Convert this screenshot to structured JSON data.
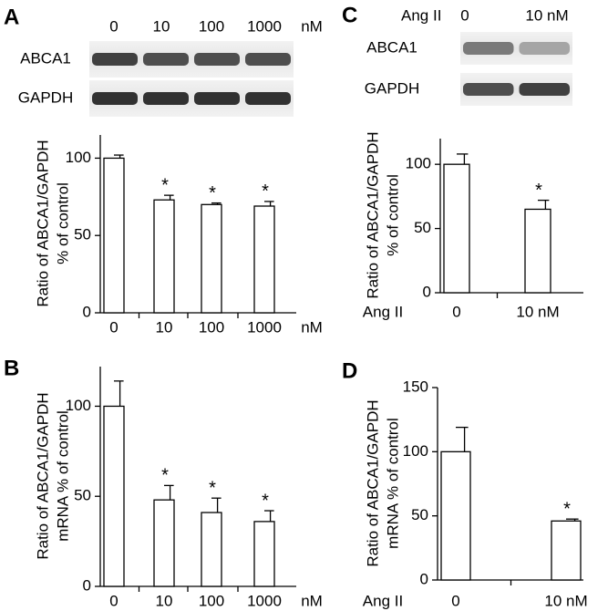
{
  "chart_data": [
    {
      "type": "bar",
      "panel": "A",
      "blot_rows": [
        "ABCA1",
        "GAPDH"
      ],
      "ylabel": [
        "Ratio of ABCA1/GAPDH",
        "% of control"
      ],
      "categories": [
        "0",
        "10",
        "100",
        "1000"
      ],
      "unit": "nM",
      "values": [
        100,
        73,
        70,
        69
      ],
      "errors": [
        2,
        3,
        1,
        3
      ],
      "significance": [
        null,
        "*",
        "*",
        "*"
      ],
      "ylim": [
        0,
        115
      ],
      "yticks": [
        0,
        50,
        100
      ],
      "color": "#ffffff"
    },
    {
      "type": "bar",
      "panel": "B",
      "ylabel": [
        "Ratio of ABCA1/GAPDH",
        "mRNA % of control"
      ],
      "categories": [
        "0",
        "10",
        "100",
        "1000"
      ],
      "unit": "nM",
      "values": [
        100,
        48,
        41,
        36
      ],
      "errors": [
        14,
        8,
        8,
        6
      ],
      "significance": [
        null,
        "*",
        "*",
        "*"
      ],
      "ylim": [
        0,
        122
      ],
      "yticks": [
        0,
        50,
        100
      ],
      "color": "#ffffff"
    },
    {
      "type": "bar",
      "panel": "C",
      "blot_rows": [
        "ABCA1",
        "GAPDH"
      ],
      "ylabel": [
        "Ratio of ABCA1/GAPDH",
        "% of control"
      ],
      "categories": [
        "0",
        "10 nM"
      ],
      "group_label": "Ang II",
      "values": [
        100,
        65
      ],
      "errors": [
        8,
        7
      ],
      "significance": [
        null,
        "*"
      ],
      "ylim": [
        0,
        120
      ],
      "yticks": [
        0,
        50,
        100
      ],
      "color": "#ffffff"
    },
    {
      "type": "bar",
      "panel": "D",
      "ylabel": [
        "Ratio of ABCA1/GAPDH",
        "mRNA % of control"
      ],
      "categories": [
        "0",
        "10 nM"
      ],
      "group_label": "Ang II",
      "values": [
        100,
        46
      ],
      "errors": [
        19,
        1.5
      ],
      "significance": [
        null,
        "*"
      ],
      "ylim": [
        0,
        150
      ],
      "yticks": [
        0,
        50,
        100,
        150
      ],
      "color": "#ffffff"
    }
  ]
}
